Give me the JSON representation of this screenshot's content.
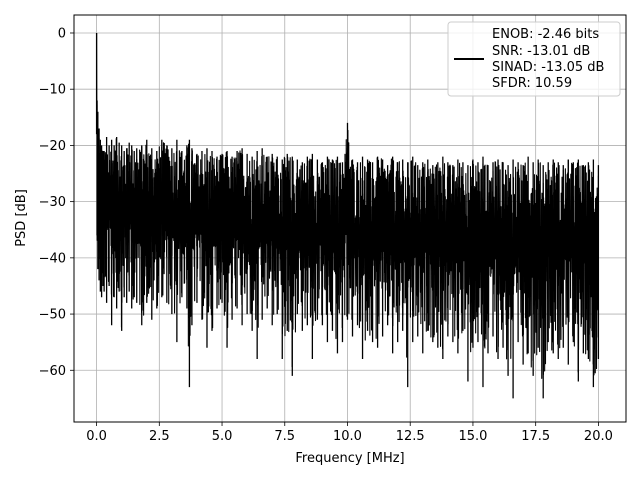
{
  "chart_data": {
    "type": "line",
    "title": "",
    "xlabel": "Frequency [MHz]",
    "ylabel": "PSD [dB]",
    "xlim": [
      -0.9,
      21.1
    ],
    "ylim": [
      -69.2,
      3.2
    ],
    "grid": true,
    "legend_position": "top-right",
    "line_color": "#000000",
    "xticks": [
      {
        "value": 0.0,
        "label": "0.0"
      },
      {
        "value": 2.5,
        "label": "2.5"
      },
      {
        "value": 5.0,
        "label": "5.0"
      },
      {
        "value": 7.5,
        "label": "7.5"
      },
      {
        "value": 10.0,
        "label": "10.0"
      },
      {
        "value": 12.5,
        "label": "12.5"
      },
      {
        "value": 15.0,
        "label": "15.0"
      },
      {
        "value": 17.5,
        "label": "17.5"
      },
      {
        "value": 20.0,
        "label": "20.0"
      }
    ],
    "yticks": [
      {
        "value": 0,
        "label": "0"
      },
      {
        "value": -10,
        "label": "−10"
      },
      {
        "value": -20,
        "label": "−20"
      },
      {
        "value": -30,
        "label": "−30"
      },
      {
        "value": -40,
        "label": "−40"
      },
      {
        "value": -50,
        "label": "−50"
      },
      {
        "value": -60,
        "label": "−60"
      }
    ],
    "legend_lines": [
      "ENOB: -2.46 bits",
      "SNR: -13.01 dB",
      "SINAD: -13.05 dB",
      "SFDR: 10.59"
    ],
    "series": [
      {
        "x": [
          0.0,
          0.02,
          0.05,
          0.1,
          0.15,
          0.2,
          0.25,
          0.3,
          0.4,
          0.5,
          0.6,
          0.7,
          0.8,
          0.9,
          1.0,
          1.1,
          1.2,
          1.3,
          1.4,
          1.5,
          1.6,
          1.8,
          2.0,
          2.2,
          2.4,
          2.6,
          2.8,
          3.0,
          3.2,
          3.4,
          3.6,
          3.7,
          3.8,
          4.0,
          4.2,
          4.4,
          4.6,
          4.8,
          5.0,
          5.2,
          5.4,
          5.6,
          5.8,
          6.0,
          6.2,
          6.4,
          6.6,
          6.8,
          7.0,
          7.2,
          7.4,
          7.6,
          7.8,
          8.0,
          8.2,
          8.4,
          8.6,
          8.8,
          9.0,
          9.2,
          9.4,
          9.6,
          9.8,
          10.0,
          10.2,
          10.4,
          10.6,
          10.8,
          11.0,
          11.2,
          11.4,
          11.6,
          11.8,
          12.0,
          12.2,
          12.4,
          12.6,
          12.8,
          13.0,
          13.2,
          13.4,
          13.6,
          13.8,
          14.0,
          14.2,
          14.4,
          14.6,
          14.8,
          15.0,
          15.2,
          15.4,
          15.6,
          15.8,
          16.0,
          16.2,
          16.4,
          16.6,
          16.8,
          17.0,
          17.2,
          17.4,
          17.6,
          17.8,
          18.0,
          18.2,
          18.4,
          18.6,
          18.8,
          19.0,
          19.2,
          19.4,
          19.6,
          19.8,
          20.0
        ],
        "ymax": [
          0.0,
          -12.0,
          -14.0,
          -17.0,
          -19.0,
          -20.0,
          -21.0,
          -21.0,
          -18.5,
          -20.0,
          -19.0,
          -20.0,
          -18.5,
          -19.5,
          -20.0,
          -21.0,
          -20.5,
          -19.5,
          -20.0,
          -21.0,
          -20.5,
          -20.0,
          -19.0,
          -20.5,
          -21.0,
          -19.0,
          -20.0,
          -20.5,
          -19.0,
          -21.0,
          -20.0,
          -19.0,
          -20.5,
          -21.5,
          -21.0,
          -20.5,
          -21.0,
          -22.0,
          -21.5,
          -21.0,
          -22.0,
          -21.0,
          -20.5,
          -21.5,
          -22.0,
          -21.0,
          -20.5,
          -22.0,
          -21.5,
          -22.0,
          -22.5,
          -21.5,
          -22.0,
          -22.5,
          -23.0,
          -22.0,
          -21.5,
          -22.5,
          -23.0,
          -22.0,
          -22.5,
          -22.0,
          -23.0,
          -16.0,
          -22.5,
          -23.0,
          -22.0,
          -22.5,
          -23.0,
          -22.0,
          -22.5,
          -23.5,
          -22.0,
          -23.0,
          -22.5,
          -23.0,
          -22.0,
          -23.5,
          -23.0,
          -22.5,
          -23.5,
          -23.0,
          -22.0,
          -23.0,
          -23.5,
          -22.5,
          -23.0,
          -23.5,
          -22.5,
          -23.0,
          -22.0,
          -23.5,
          -23.0,
          -22.5,
          -23.0,
          -23.5,
          -22.5,
          -23.0,
          -23.5,
          -22.0,
          -23.0,
          -22.5,
          -23.5,
          -23.0,
          -22.5,
          -23.0,
          -23.5,
          -22.5,
          -23.0,
          -22.5,
          -23.5,
          -23.0,
          -22.5,
          -23.5
        ],
        "ymin": [
          -18.0,
          -36.0,
          -42.0,
          -44.0,
          -46.0,
          -47.0,
          -45.0,
          -46.0,
          -48.0,
          -45.0,
          -52.0,
          -47.0,
          -49.0,
          -46.0,
          -53.0,
          -47.0,
          -48.0,
          -46.0,
          -49.0,
          -47.0,
          -48.0,
          -52.0,
          -48.0,
          -51.0,
          -49.0,
          -47.0,
          -48.0,
          -50.0,
          -55.0,
          -47.0,
          -49.0,
          -63.0,
          -52.0,
          -48.0,
          -51.0,
          -56.0,
          -53.0,
          -49.0,
          -48.0,
          -56.0,
          -51.0,
          -49.0,
          -52.0,
          -50.0,
          -53.0,
          -58.0,
          -51.0,
          -49.0,
          -52.0,
          -50.0,
          -58.0,
          -53.0,
          -61.0,
          -50.0,
          -53.0,
          -52.0,
          -58.0,
          -51.0,
          -52.0,
          -55.0,
          -53.0,
          -57.0,
          -55.0,
          -51.0,
          -54.0,
          -52.0,
          -58.0,
          -53.0,
          -55.0,
          -56.0,
          -54.0,
          -52.0,
          -57.0,
          -55.0,
          -53.0,
          -63.0,
          -55.0,
          -54.0,
          -57.0,
          -53.0,
          -55.0,
          -56.0,
          -58.0,
          -54.0,
          -55.0,
          -57.0,
          -53.0,
          -62.0,
          -56.0,
          -55.0,
          -63.0,
          -57.0,
          -54.0,
          -58.0,
          -56.0,
          -61.0,
          -65.0,
          -55.0,
          -59.0,
          -57.0,
          -61.0,
          -56.0,
          -65.0,
          -55.0,
          -57.0,
          -58.0,
          -56.0,
          -59.0,
          -55.0,
          -62.0,
          -57.0,
          -58.0,
          -63.0,
          -58.0
        ]
      }
    ]
  }
}
